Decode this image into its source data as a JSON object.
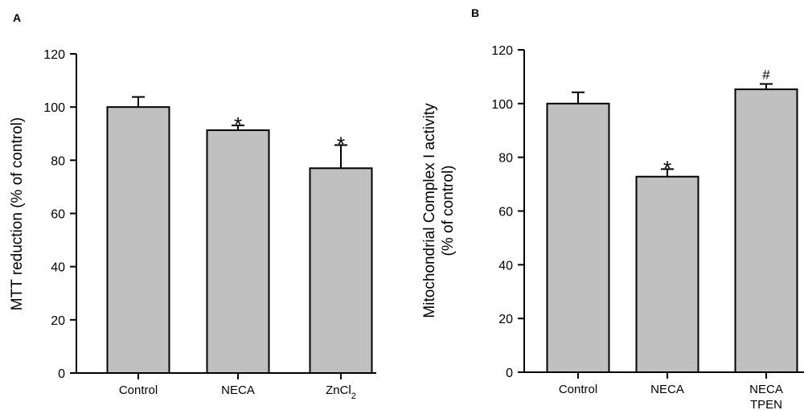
{
  "chart_data": [
    {
      "panel": "A",
      "type": "bar",
      "categories": [
        "Control",
        "NECA",
        "ZnCl"
      ],
      "category_subscripts": [
        "",
        "",
        "2"
      ],
      "values": [
        100,
        91.3,
        77
      ],
      "errors": [
        3.8,
        1.8,
        8.7
      ],
      "significance": [
        "",
        "*",
        "*"
      ],
      "ylabel": "MTT reduction (% of control)",
      "xlabel": "",
      "ylim": [
        0,
        120
      ],
      "yticks": [
        0,
        20,
        40,
        60,
        80,
        100,
        120
      ],
      "colors": {
        "bar": "#c0c0c0",
        "edge": "#000000"
      }
    },
    {
      "panel": "B",
      "type": "bar",
      "categories": [
        "Control",
        "NECA",
        "NECA"
      ],
      "category_line2": [
        "",
        "",
        "TPEN"
      ],
      "values": [
        100,
        72.8,
        105.3
      ],
      "errors": [
        4.2,
        2.8,
        2.0
      ],
      "significance": [
        "",
        "*",
        "#"
      ],
      "ylabel_line1": "Mitochondrial Complex I activity",
      "ylabel_line2": "(% of control)",
      "xlabel": "",
      "ylim": [
        0,
        120
      ],
      "yticks": [
        0,
        20,
        40,
        60,
        80,
        100,
        120
      ],
      "colors": {
        "bar": "#c0c0c0",
        "edge": "#000000"
      }
    }
  ]
}
